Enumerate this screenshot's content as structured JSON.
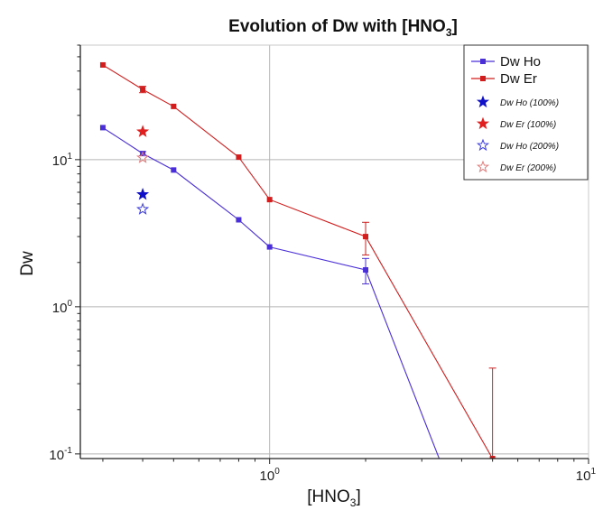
{
  "chart_data": {
    "type": "line",
    "title": "Evolution of Dw with [HNO",
    "title_sub": "3",
    "title_end": "]",
    "xlabel": "[HNO",
    "xlabel_sub": "3",
    "xlabel_end": "]",
    "ylabel": "Dw",
    "xscale": "log",
    "yscale": "log",
    "xlim": [
      0.255,
      10
    ],
    "ylim": [
      0.093,
      60
    ],
    "grid": "decades",
    "legend_position": "top-right",
    "x_ticks": [
      {
        "value": 1,
        "base": "10",
        "exp": "0"
      },
      {
        "value": 10,
        "base": "10",
        "exp": "1"
      }
    ],
    "y_ticks": [
      {
        "value": 0.1,
        "base": "10",
        "exp": "-1"
      },
      {
        "value": 1,
        "base": "10",
        "exp": "0"
      },
      {
        "value": 10,
        "base": "10",
        "exp": "1"
      }
    ],
    "series": [
      {
        "name": "Dw Ho",
        "color": "#4b2fd6",
        "marker": "square",
        "x": [
          0.3,
          0.4,
          0.5,
          0.8,
          1,
          2,
          3.4
        ],
        "y": [
          16.5,
          11,
          8.5,
          3.9,
          2.55,
          1.78,
          0.093
        ],
        "error": [
          0,
          0.35,
          0,
          0,
          0,
          0.35,
          0
        ],
        "marker_mask": [
          true,
          true,
          true,
          true,
          true,
          true,
          false
        ]
      },
      {
        "name": "Dw Er",
        "color": "#d01e1e",
        "marker": "square",
        "x": [
          0.3,
          0.4,
          0.5,
          0.8,
          1,
          2,
          5
        ],
        "y": [
          44,
          30,
          23,
          10.4,
          5.35,
          3,
          0.093
        ],
        "error": [
          0,
          1.5,
          0,
          0,
          0,
          0.75,
          0.29
        ],
        "marker_mask": [
          true,
          true,
          true,
          true,
          true,
          true,
          true
        ]
      }
    ],
    "points": [
      {
        "name": "Dw Ho (100%)",
        "color": "#1010c8",
        "marker": "star-filled",
        "x": 0.4,
        "y": 5.8
      },
      {
        "name": "Dw Er (100%)",
        "color": "#e02020",
        "marker": "star-filled",
        "x": 0.4,
        "y": 15.5
      },
      {
        "name": "Dw Ho (200%)",
        "color": "#3a3ae0",
        "marker": "star-open",
        "x": 0.4,
        "y": 4.6
      },
      {
        "name": "Dw Er (200%)",
        "color": "#e07a7a",
        "marker": "star-open",
        "x": 0.4,
        "y": 10.3
      }
    ]
  }
}
